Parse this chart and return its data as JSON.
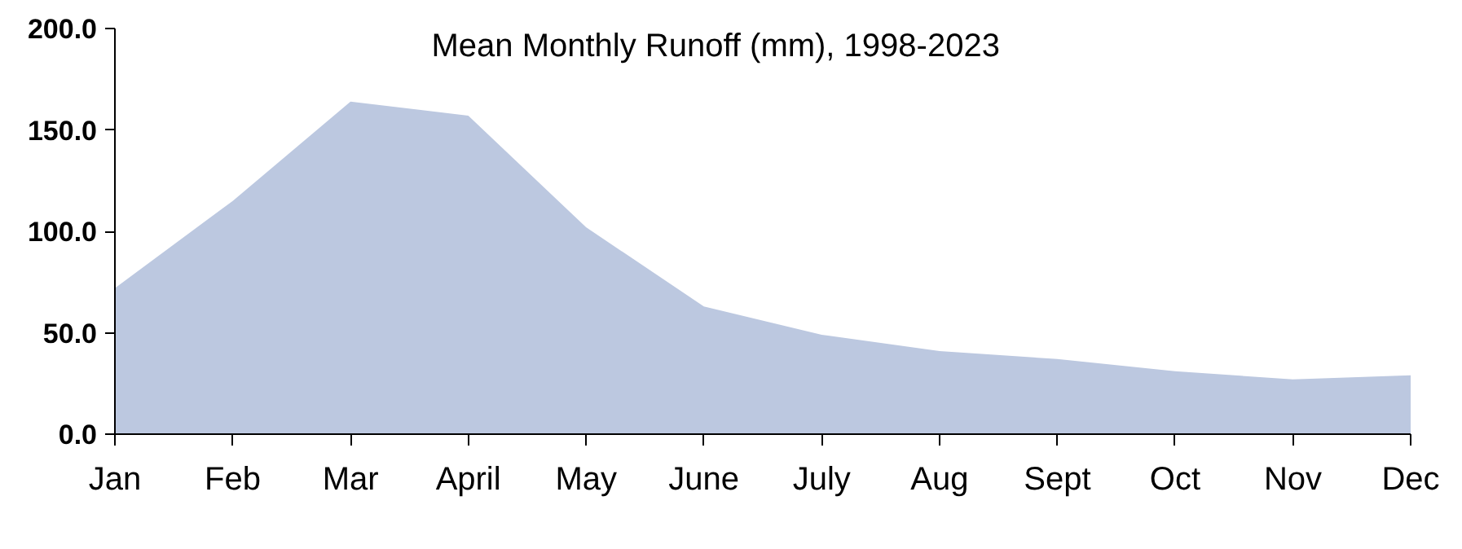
{
  "chart_data": {
    "type": "area",
    "title": "Mean Monthly Runoff (mm), 1998-2023",
    "categories": [
      "Jan",
      "Feb",
      "Mar",
      "April",
      "May",
      "June",
      "July",
      "Aug",
      "Sept",
      "Oct",
      "Nov",
      "Dec"
    ],
    "values": [
      72,
      115,
      164,
      157,
      102,
      63,
      49,
      41,
      37,
      31,
      27,
      29
    ],
    "color": "#bcc8e0",
    "ylim": [
      0,
      200
    ],
    "yticks": [
      {
        "value": 0,
        "label": "0.0"
      },
      {
        "value": 50,
        "label": "50.0"
      },
      {
        "value": 100,
        "label": "100.0"
      },
      {
        "value": 150,
        "label": "150.0"
      },
      {
        "value": 200,
        "label": "200.0"
      }
    ],
    "grid": false
  }
}
